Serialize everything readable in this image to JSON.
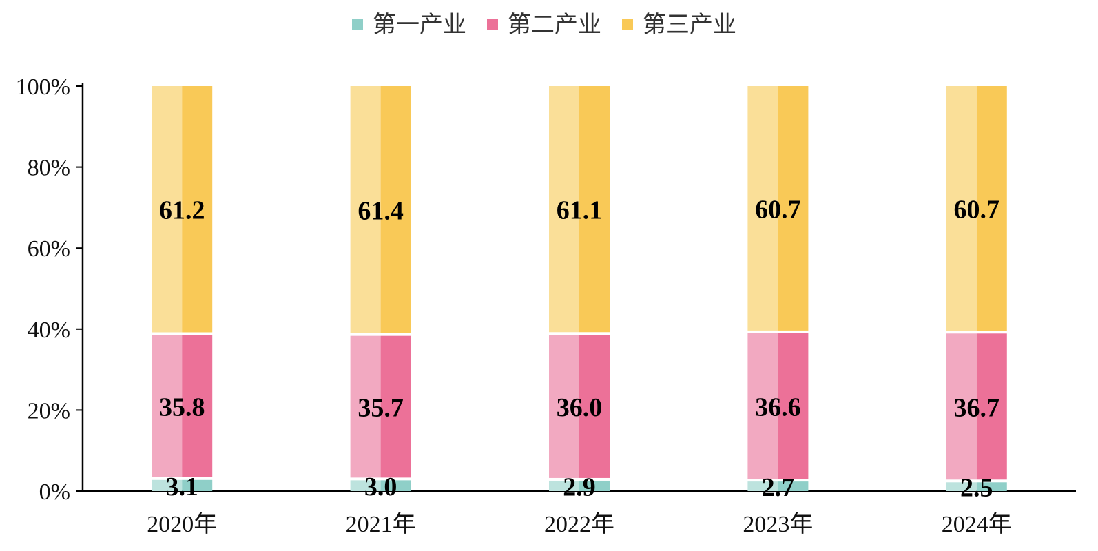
{
  "chart_data": {
    "type": "bar",
    "stacked": true,
    "stack_mode": "percent",
    "title": "",
    "xlabel": "",
    "ylabel": "",
    "categories": [
      "2020年",
      "2021年",
      "2022年",
      "2023年",
      "2024年"
    ],
    "y_ticks": [
      "0%",
      "20%",
      "40%",
      "60%",
      "80%",
      "100%"
    ],
    "ylim": [
      0,
      100
    ],
    "grid": false,
    "legend_position": "top",
    "series": [
      {
        "name": "第一产业",
        "values": [
          3.1,
          3.0,
          2.9,
          2.7,
          2.5
        ],
        "labels": [
          "3.1",
          "3.0",
          "2.9",
          "2.7",
          "2.5"
        ],
        "color": "#8fcfc8",
        "color_light": "#bde3de"
      },
      {
        "name": "第二产业",
        "values": [
          35.8,
          35.7,
          36.0,
          36.6,
          36.7
        ],
        "labels": [
          "35.8",
          "35.7",
          "36.0",
          "36.6",
          "36.7"
        ],
        "color": "#ec7198",
        "color_light": "#f2a9c1"
      },
      {
        "name": "第三产业",
        "values": [
          61.2,
          61.4,
          61.1,
          60.7,
          60.7
        ],
        "labels": [
          "61.2",
          "61.4",
          "61.1",
          "60.7",
          "60.7"
        ],
        "color": "#f9c957",
        "color_light": "#fadf98"
      }
    ]
  }
}
